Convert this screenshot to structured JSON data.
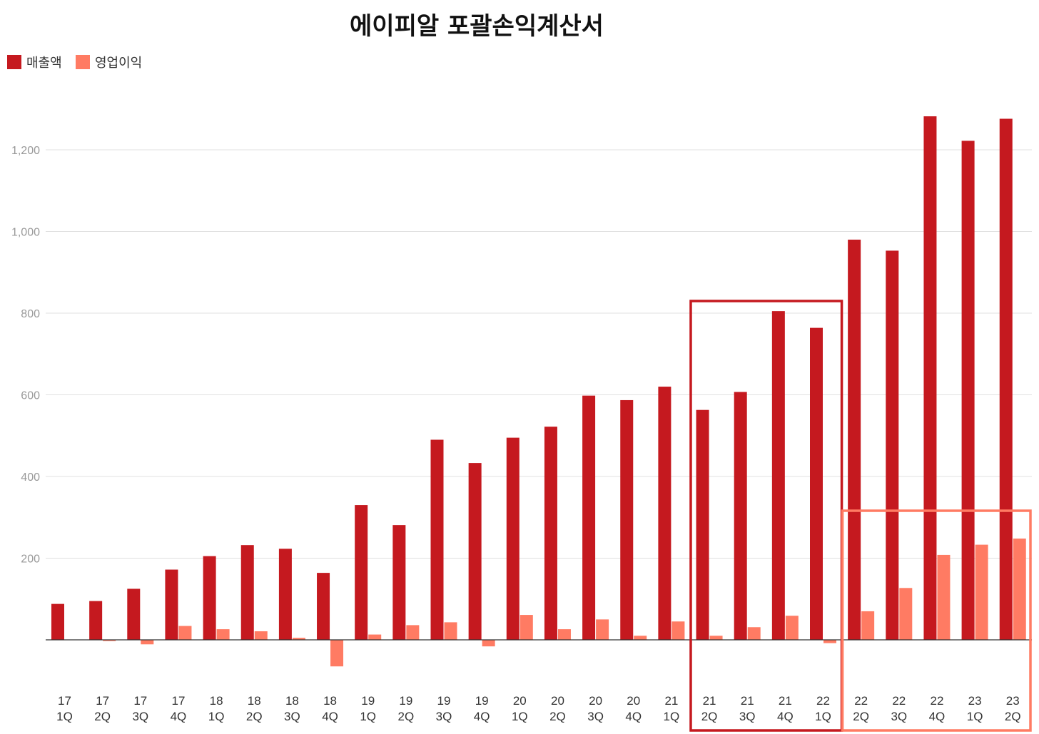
{
  "chart_data": {
    "type": "bar",
    "title": "에이피알 포괄손익계산서",
    "xlabel": "",
    "ylabel": "",
    "ylim": [
      -150,
      1400
    ],
    "yticks": [
      200,
      400,
      600,
      800,
      1000,
      1200
    ],
    "ytick_labels": [
      "200",
      "400",
      "600",
      "800",
      "1,000",
      "1,200"
    ],
    "grid": true,
    "legend_position": "top-left",
    "categories": [
      [
        "17",
        "1Q"
      ],
      [
        "17",
        "2Q"
      ],
      [
        "17",
        "3Q"
      ],
      [
        "17",
        "4Q"
      ],
      [
        "18",
        "1Q"
      ],
      [
        "18",
        "2Q"
      ],
      [
        "18",
        "3Q"
      ],
      [
        "18",
        "4Q"
      ],
      [
        "19",
        "1Q"
      ],
      [
        "19",
        "2Q"
      ],
      [
        "19",
        "3Q"
      ],
      [
        "19",
        "4Q"
      ],
      [
        "20",
        "1Q"
      ],
      [
        "20",
        "2Q"
      ],
      [
        "20",
        "3Q"
      ],
      [
        "20",
        "4Q"
      ],
      [
        "21",
        "1Q"
      ],
      [
        "21",
        "2Q"
      ],
      [
        "21",
        "3Q"
      ],
      [
        "21",
        "4Q"
      ],
      [
        "22",
        "1Q"
      ],
      [
        "22",
        "2Q"
      ],
      [
        "22",
        "3Q"
      ],
      [
        "22",
        "4Q"
      ],
      [
        "23",
        "1Q"
      ],
      [
        "23",
        "2Q"
      ]
    ],
    "series": [
      {
        "name": "매출액",
        "color": "#c5191f",
        "values": [
          88,
          95,
          125,
          172,
          205,
          232,
          223,
          164,
          330,
          281,
          490,
          433,
          495,
          522,
          598,
          587,
          620,
          563,
          607,
          805,
          764,
          980,
          953,
          1282,
          1222,
          1276
        ]
      },
      {
        "name": "영업이익",
        "color": "#ff7b63",
        "values": [
          0,
          -3,
          -11,
          34,
          26,
          21,
          5,
          -65,
          13,
          36,
          43,
          -16,
          61,
          26,
          50,
          10,
          45,
          10,
          31,
          59,
          -8,
          70,
          127,
          208,
          233,
          248
        ]
      }
    ],
    "highlight_boxes": [
      {
        "from_category": 17,
        "to_category": 20,
        "color": "#c5191f"
      },
      {
        "from_category": 21,
        "to_category": 25,
        "color": "#ff7b63"
      }
    ]
  }
}
